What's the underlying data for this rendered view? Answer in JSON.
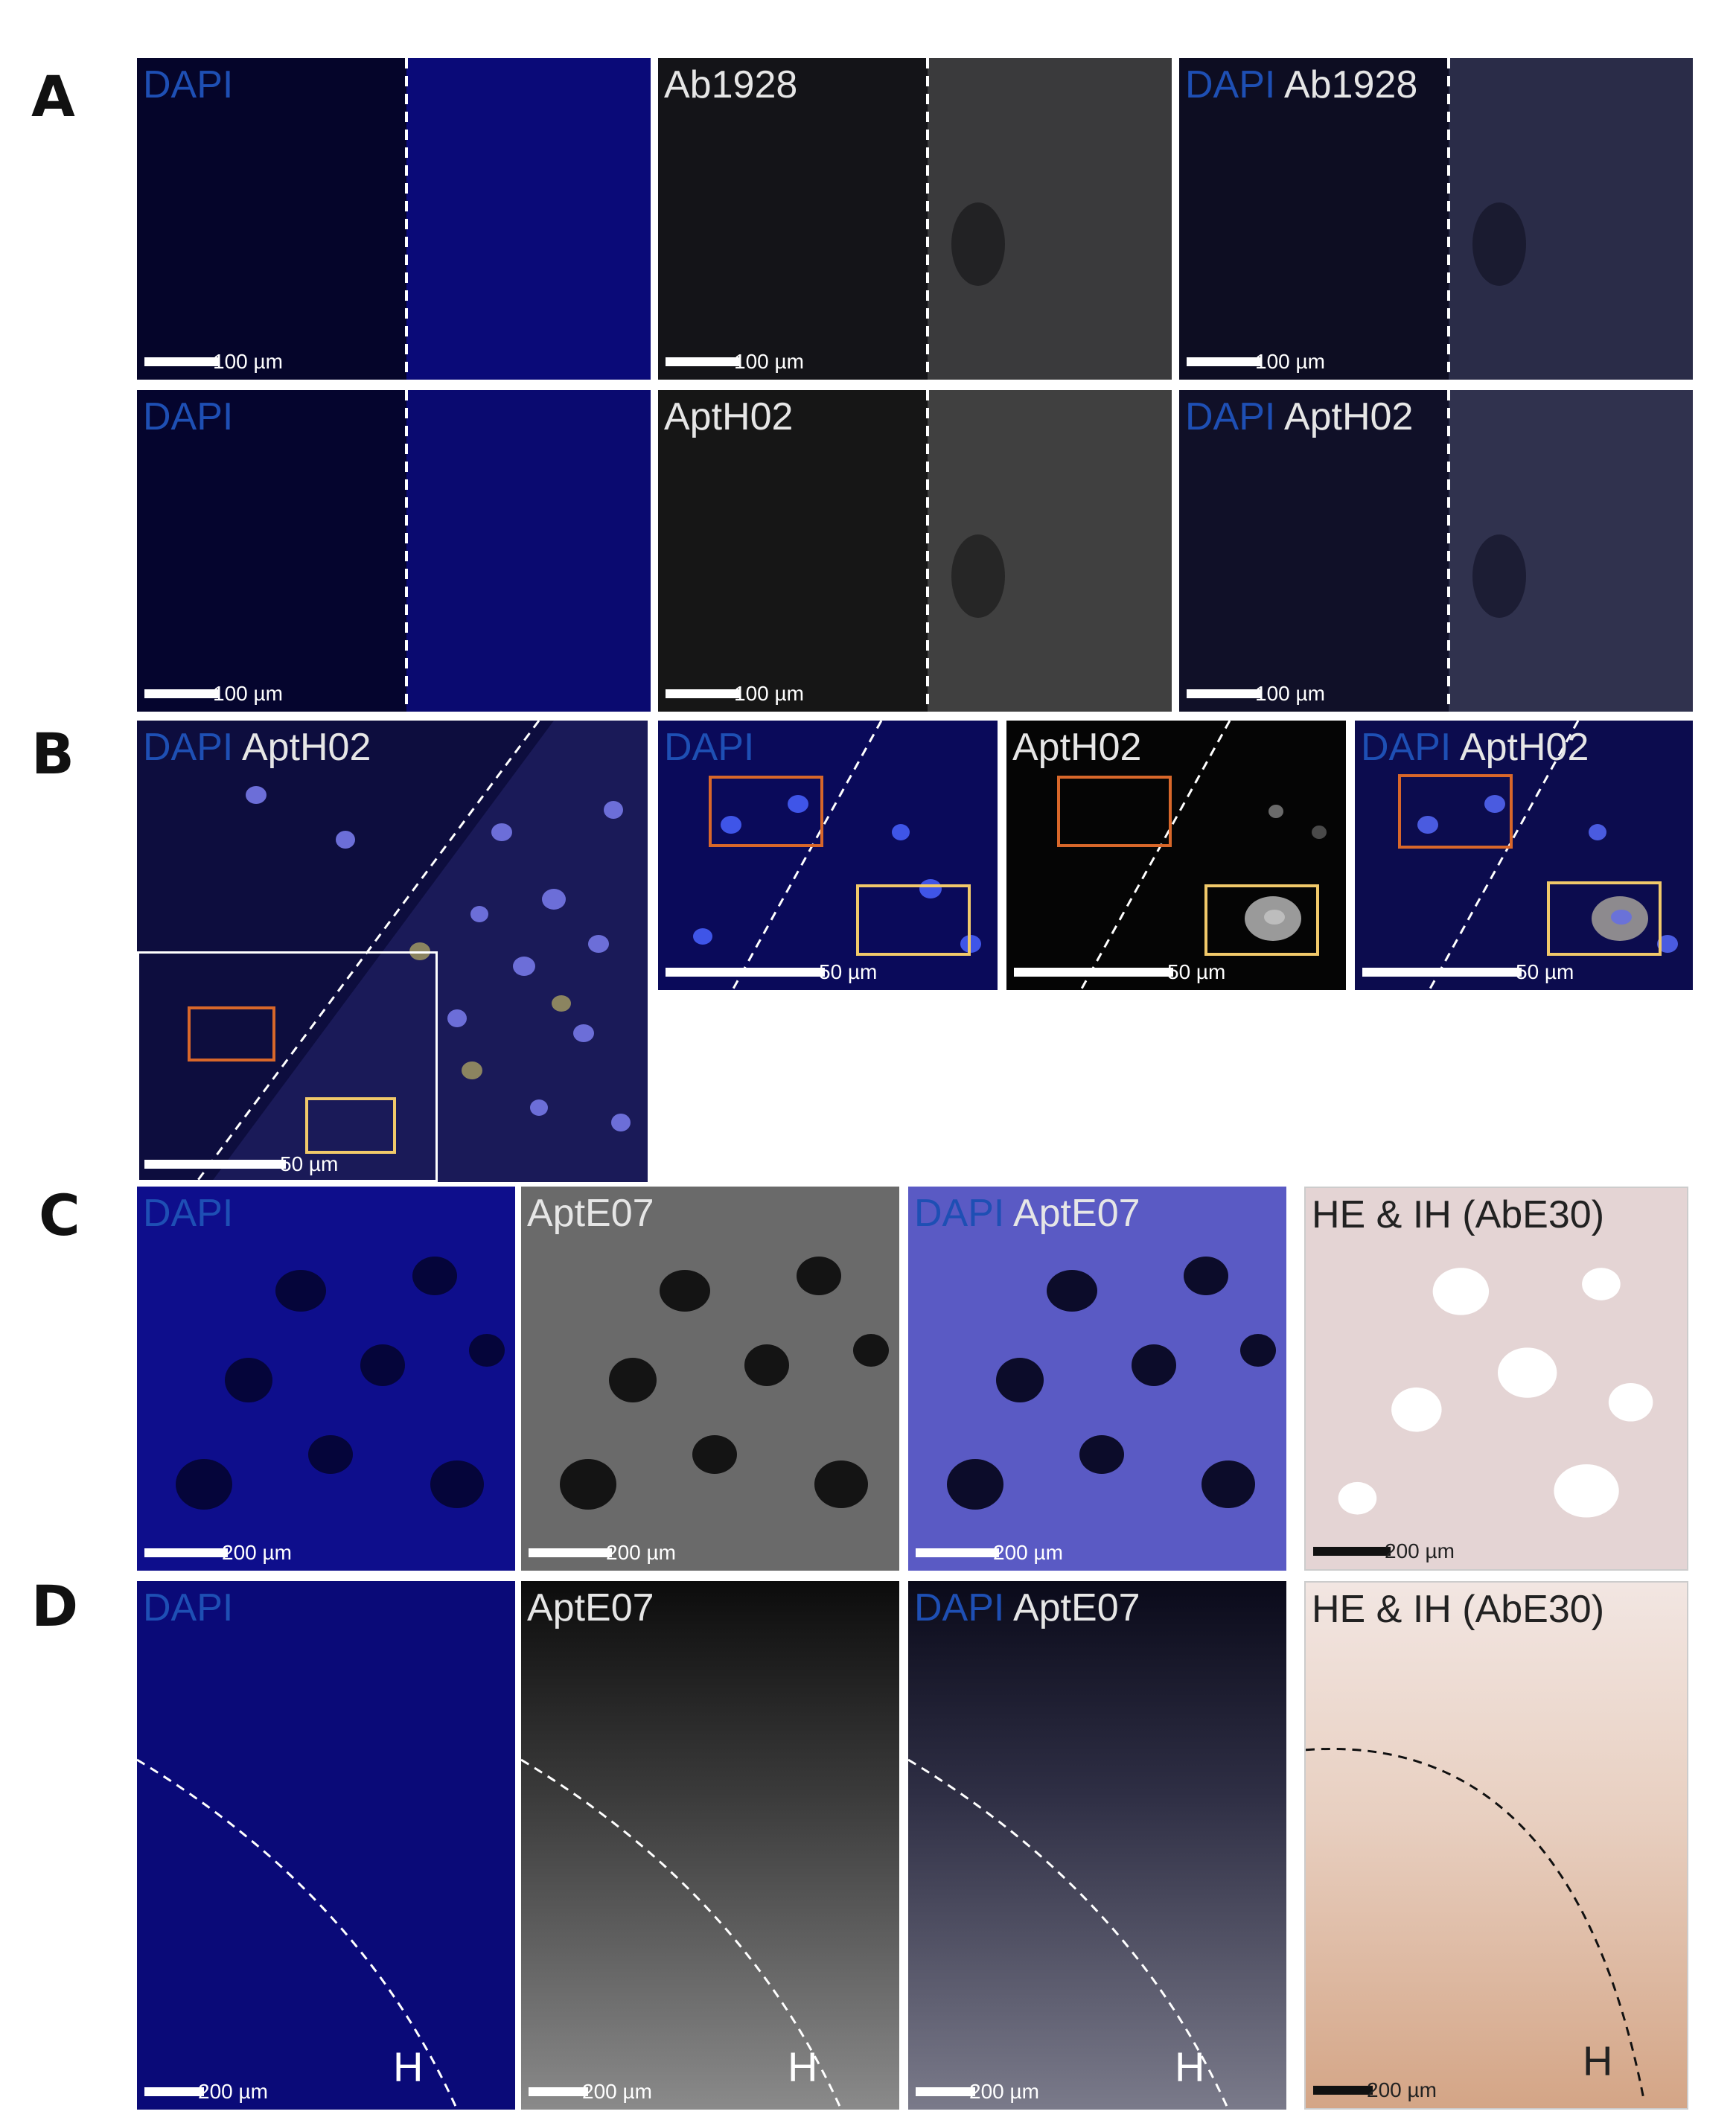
{
  "panel_labels": {
    "a": "A",
    "b": "B",
    "c": "C",
    "d": "D"
  },
  "panels": {
    "a1": {
      "title_blue": "DAPI",
      "title_white": "",
      "scale": "100 µm"
    },
    "a2": {
      "title_blue": "",
      "title_white": "Ab1928",
      "scale": "100 µm"
    },
    "a3": {
      "title_blue": "DAPI",
      "title_white": "Ab1928",
      "scale": "100 µm"
    },
    "a4": {
      "title_blue": "DAPI",
      "title_white": "",
      "scale": "100 µm"
    },
    "a5": {
      "title_blue": "",
      "title_white": "AptH02",
      "scale": "100 µm"
    },
    "a6": {
      "title_blue": "DAPI",
      "title_white": "AptH02",
      "scale": "100 µm"
    },
    "b1": {
      "title_blue": "DAPI",
      "title_white": "AptH02",
      "scale": "50 µm"
    },
    "b2": {
      "title_blue": "DAPI",
      "title_white": "",
      "scale": "50 µm"
    },
    "b3": {
      "title_blue": "",
      "title_white": "AptH02",
      "scale": "50 µm"
    },
    "b4": {
      "title_blue": "DAPI",
      "title_white": "AptH02",
      "scale": "50 µm"
    },
    "c1": {
      "title_blue": "DAPI",
      "title_white": "",
      "scale": "200 µm"
    },
    "c2": {
      "title_blue": "",
      "title_white": "AptE07",
      "scale": "200 µm"
    },
    "c3": {
      "title_blue": "DAPI",
      "title_white": "AptE07",
      "scale": "200 µm"
    },
    "c4": {
      "title_dark": "HE & IH (AbE30)",
      "scale": "200 µm"
    },
    "d1": {
      "title_blue": "DAPI",
      "title_white": "",
      "scale": "200 µm",
      "region": "H"
    },
    "d2": {
      "title_blue": "",
      "title_white": "AptE07",
      "scale": "200 µm",
      "region": "H"
    },
    "d3": {
      "title_blue": "DAPI",
      "title_white": "AptE07",
      "scale": "200 µm",
      "region": "H"
    },
    "d4": {
      "title_dark": "HE & IH (AbE30)",
      "scale": "200 µm",
      "region": "H"
    }
  },
  "colors": {
    "dapi": "#1e4fb4",
    "orange_box": "#d8672a",
    "yellow_box": "#f1c96a",
    "he_stain": "#b07048"
  }
}
